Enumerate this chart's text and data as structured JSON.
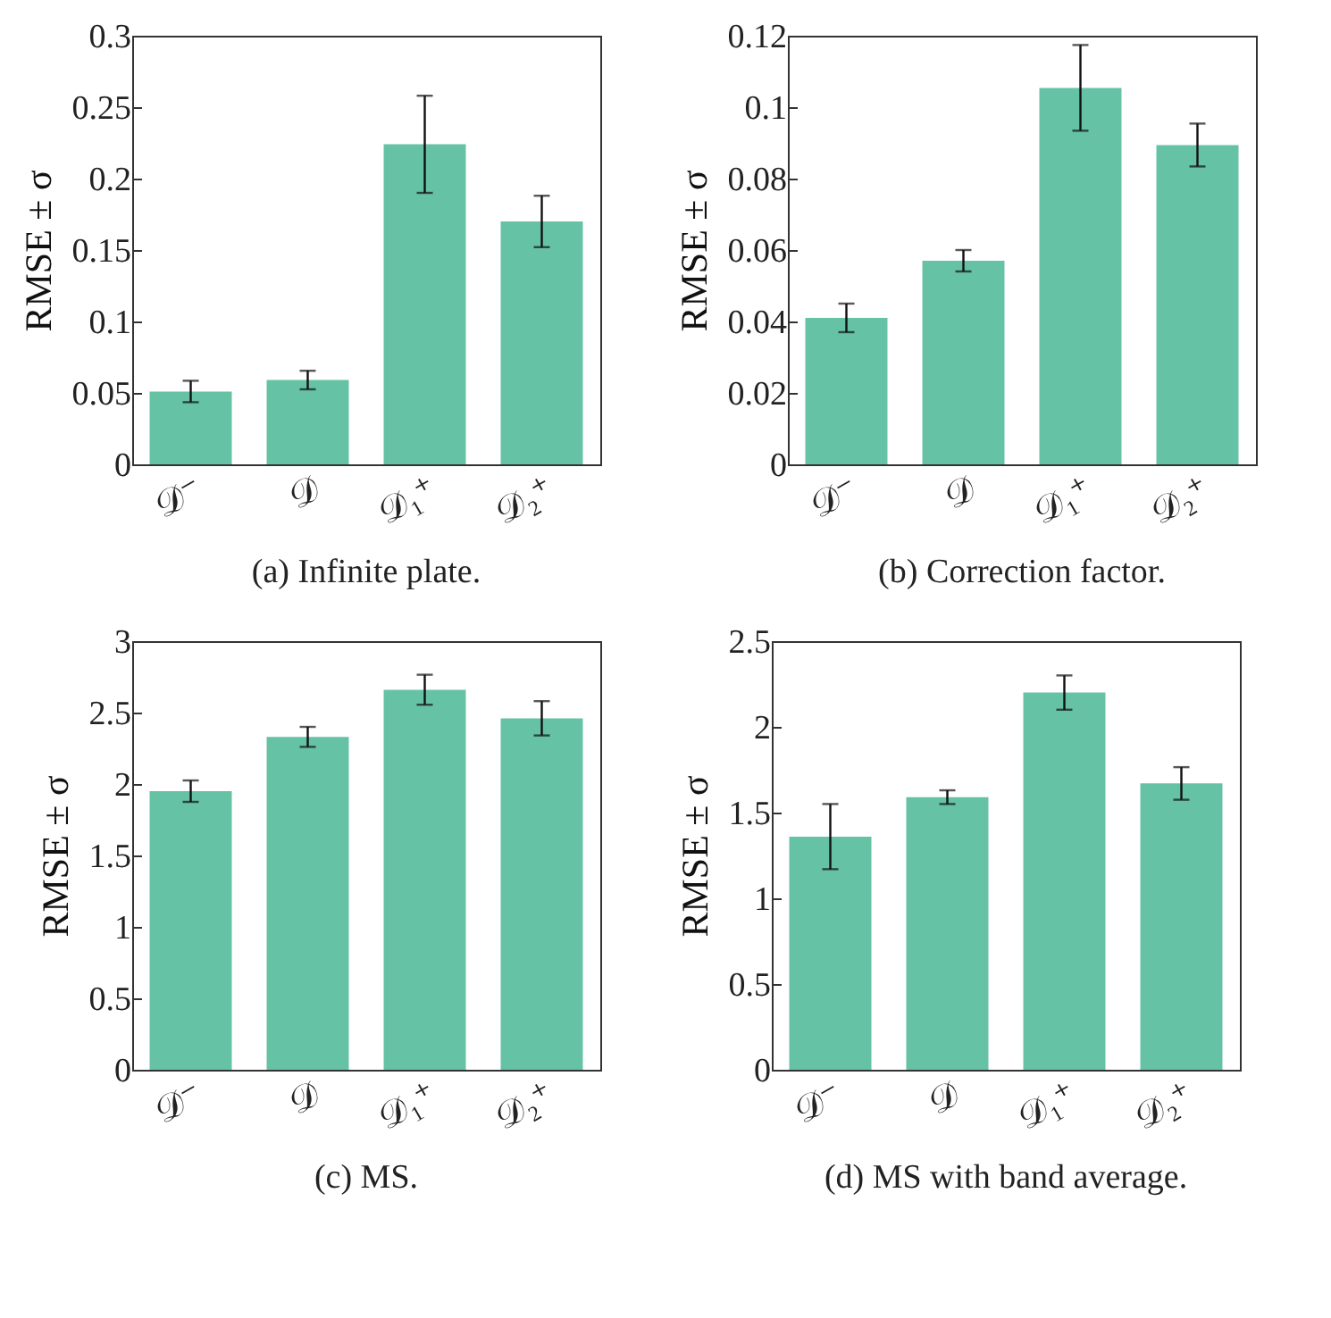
{
  "chart_data": [
    {
      "type": "bar",
      "title": "(a) Infinite plate.",
      "ylabel": "RMSE ± σ",
      "categories": [
        "𝒟⁻",
        "𝒟",
        "𝒟₁⁺",
        "𝒟₂⁺"
      ],
      "values": [
        0.051,
        0.059,
        0.224,
        0.17
      ],
      "errors": [
        0.0075,
        0.0065,
        0.034,
        0.018
      ],
      "color": "#66c2a5",
      "ylim": [
        0,
        0.3
      ],
      "yticks": [
        0,
        0.05,
        0.1,
        0.15,
        0.2,
        0.25,
        0.3
      ],
      "grid": false
    },
    {
      "type": "bar",
      "title": "(b) Correction factor.",
      "ylabel": "RMSE ± σ",
      "categories": [
        "𝒟⁻",
        "𝒟",
        "𝒟₁⁺",
        "𝒟₂⁺"
      ],
      "values": [
        0.041,
        0.057,
        0.1054,
        0.0894
      ],
      "errors": [
        0.004,
        0.003,
        0.012,
        0.006
      ],
      "color": "#66c2a5",
      "ylim": [
        0,
        0.12
      ],
      "yticks": [
        0,
        0.02,
        0.04,
        0.06,
        0.08,
        0.1,
        0.12
      ],
      "grid": false
    },
    {
      "type": "bar",
      "title": "(c) MS.",
      "ylabel": "RMSE ± σ",
      "categories": [
        "𝒟⁻",
        "𝒟",
        "𝒟₁⁺",
        "𝒟₂⁺"
      ],
      "values": [
        1.95,
        2.33,
        2.66,
        2.46
      ],
      "errors": [
        0.075,
        0.07,
        0.105,
        0.12
      ],
      "color": "#66c2a5",
      "ylim": [
        0,
        3
      ],
      "yticks": [
        0,
        0.5,
        1,
        1.5,
        2,
        2.5,
        3
      ],
      "grid": false
    },
    {
      "type": "bar",
      "title": "(d) MS with band average.",
      "ylabel": "RMSE ± σ",
      "categories": [
        "𝒟⁻",
        "𝒟",
        "𝒟₁⁺",
        "𝒟₂⁺"
      ],
      "values": [
        1.36,
        1.59,
        2.2,
        1.67
      ],
      "errors": [
        0.19,
        0.04,
        0.1,
        0.095
      ],
      "color": "#66c2a5",
      "ylim": [
        0,
        2.5
      ],
      "yticks": [
        0,
        0.5,
        1,
        1.5,
        2,
        2.5
      ],
      "grid": false
    }
  ]
}
